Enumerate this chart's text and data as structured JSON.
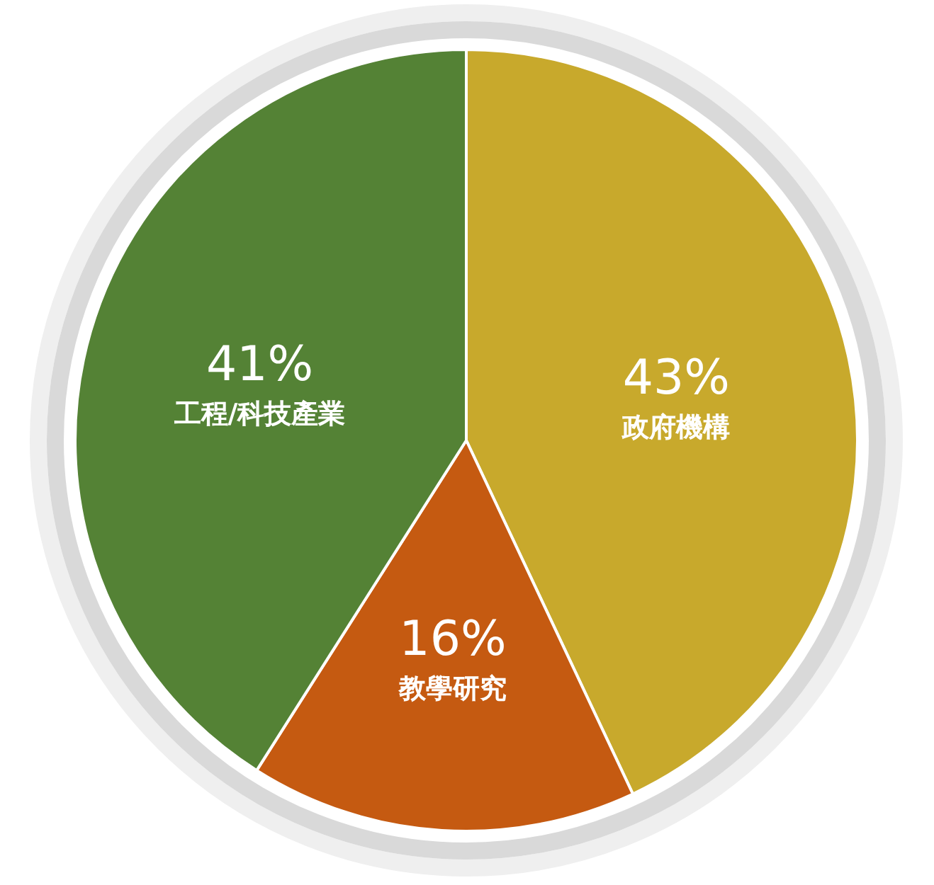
{
  "chart_data": {
    "type": "pie",
    "categories": [
      "政府機構",
      "教學研究",
      "工程/科技產業"
    ],
    "values": [
      43,
      16,
      41
    ],
    "value_labels": [
      "43%",
      "16%",
      "41%"
    ],
    "colors": [
      "#c8a92c",
      "#c55a11",
      "#548235"
    ],
    "legend": false
  }
}
